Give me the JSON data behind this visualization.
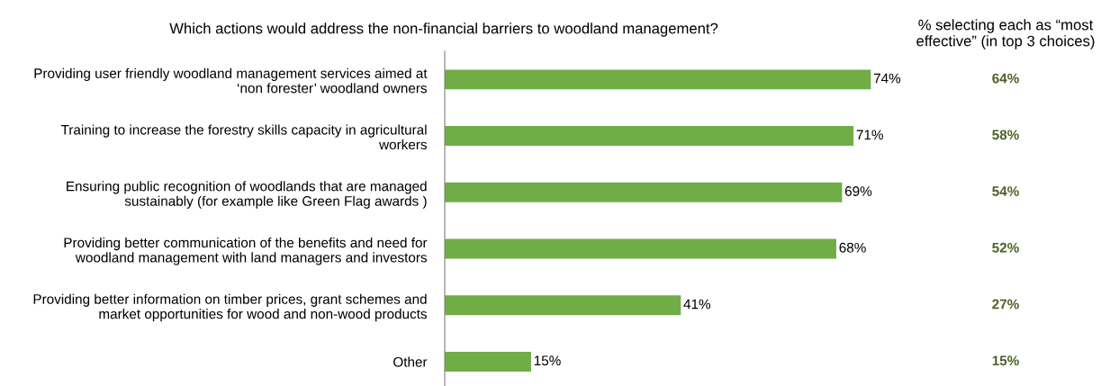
{
  "chart_data": {
    "type": "bar",
    "orientation": "horizontal",
    "title": "Which actions would address the non-financial barriers to woodland management?",
    "categories": [
      "Providing user friendly woodland management services aimed at\n‘non forester’ woodland owners",
      "Training to increase the forestry skills capacity in agricultural\nworkers",
      "Ensuring public recognition of woodlands that are managed\nsustainably (for example like Green Flag awards )",
      "Providing better communication of the benefits and need for\nwoodland management with land managers and investors",
      "Providing better information on timber prices, grant schemes and\nmarket opportunities for wood and non-wood products",
      "Other"
    ],
    "tick_labels": "y",
    "grid": false,
    "series": [
      {
        "color": "#70ad47",
        "values": [
          74,
          71,
          69,
          68,
          41,
          15
        ],
        "value_labels": [
          "74%",
          "71%",
          "69%",
          "68%",
          "41%",
          "15%"
        ]
      }
    ],
    "annotations": [
      "% selecting each as “most\neffective” (in top 3 choices)",
      "64%",
      "58%",
      "54%",
      "52%",
      "27%",
      "15%"
    ]
  }
}
